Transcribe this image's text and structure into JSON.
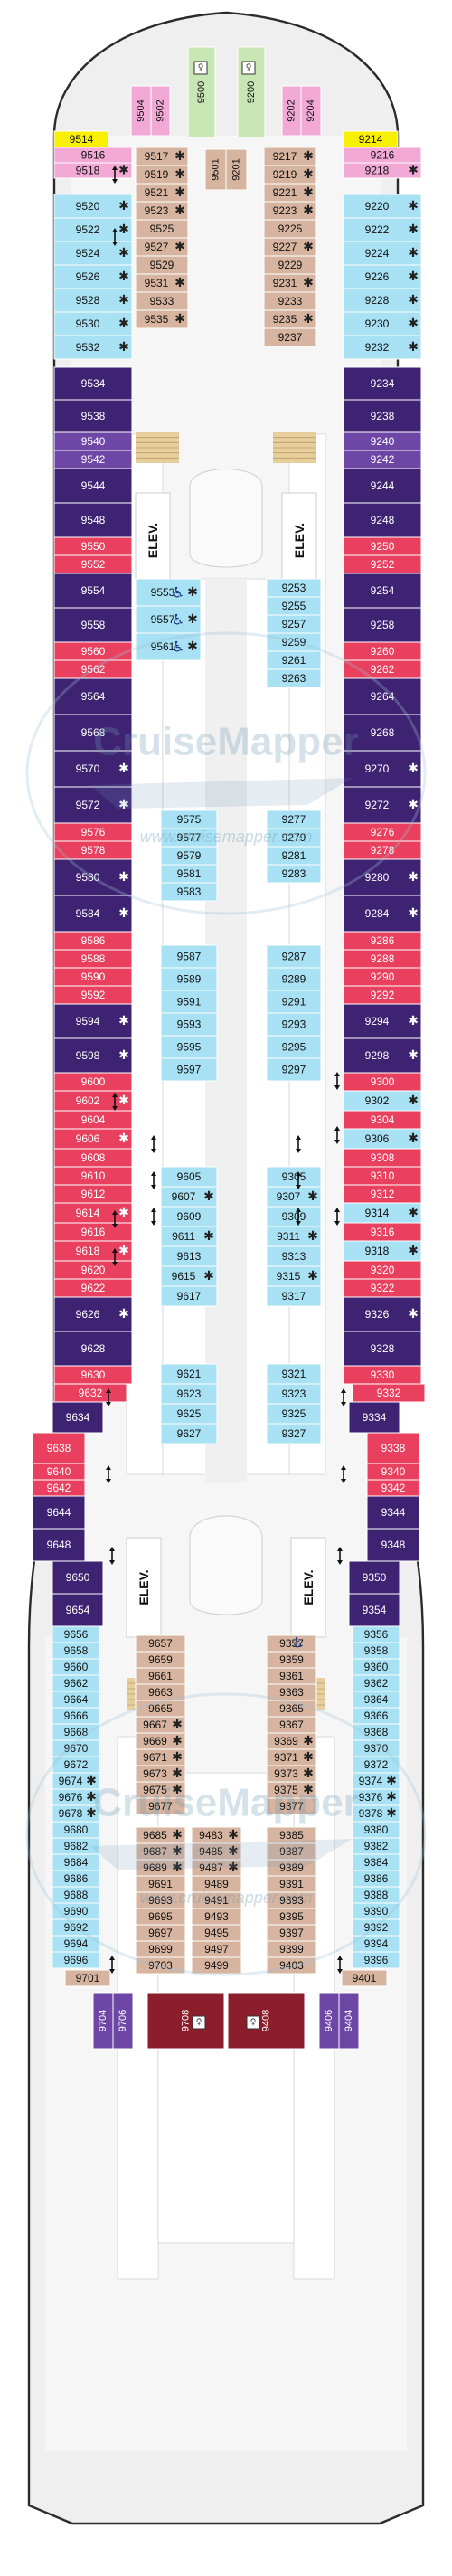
{
  "watermark": {
    "brand": "CruiseMapper",
    "url": "www.cruisemapper.com"
  },
  "colors": {
    "pink": "#f2a9d6",
    "yellow": "#f7f000",
    "green": "#c8e6b4",
    "purple_dark": "#3f2373",
    "purple_mid": "#6e47a6",
    "red": "#e8405e",
    "light_blue": "#a7e1f3",
    "tan": "#d7b49f",
    "maroon": "#8c1e2c",
    "stair": "#e7cf9d"
  },
  "labels": {
    "elevator": "ELEV."
  },
  "icons": [
    "wheelchair-icon",
    "connecting-door-arrow-icon",
    "balcony-star-icon",
    "restroom-icon"
  ],
  "cabins": [
    [
      "9504",
      "pink",
      "v"
    ],
    [
      "9502",
      "pink",
      "v"
    ],
    [
      "9500",
      "green",
      "v"
    ],
    [
      "9200",
      "green",
      "v"
    ],
    [
      "9202",
      "pink",
      "v"
    ],
    [
      "9204",
      "pink",
      "v"
    ],
    [
      "9514",
      "yellow"
    ],
    [
      "9214",
      "yellow"
    ],
    [
      "9516",
      "pink"
    ],
    [
      "9518",
      "pink",
      "*"
    ],
    [
      "9216",
      "pink"
    ],
    [
      "9218",
      "pink",
      "*"
    ],
    [
      "9520",
      "light_blue",
      "*"
    ],
    [
      "9522",
      "light_blue",
      "*"
    ],
    [
      "9524",
      "light_blue",
      "*"
    ],
    [
      "9526",
      "light_blue",
      "*"
    ],
    [
      "9528",
      "light_blue",
      "*"
    ],
    [
      "9530",
      "light_blue",
      "*"
    ],
    [
      "9532",
      "light_blue",
      "*"
    ],
    [
      "9220",
      "light_blue",
      "*"
    ],
    [
      "9222",
      "light_blue",
      "*"
    ],
    [
      "9224",
      "light_blue",
      "*"
    ],
    [
      "9226",
      "light_blue",
      "*"
    ],
    [
      "9228",
      "light_blue",
      "*"
    ],
    [
      "9230",
      "light_blue",
      "*"
    ],
    [
      "9232",
      "light_blue",
      "*"
    ],
    [
      "9517",
      "tan",
      "*"
    ],
    [
      "9519",
      "tan",
      "*"
    ],
    [
      "9521",
      "tan",
      "*"
    ],
    [
      "9523",
      "tan",
      "*"
    ],
    [
      "9525",
      "tan"
    ],
    [
      "9527",
      "tan",
      "*"
    ],
    [
      "9529",
      "tan"
    ],
    [
      "9531",
      "tan",
      "*"
    ],
    [
      "9533",
      "tan"
    ],
    [
      "9535",
      "tan",
      "*"
    ],
    [
      "9501",
      "tan",
      "v"
    ],
    [
      "9201",
      "tan",
      "v"
    ],
    [
      "9217",
      "tan",
      "*"
    ],
    [
      "9219",
      "tan",
      "*"
    ],
    [
      "9221",
      "tan",
      "*"
    ],
    [
      "9223",
      "tan",
      "*"
    ],
    [
      "9225",
      "tan"
    ],
    [
      "9227",
      "tan",
      "*"
    ],
    [
      "9229",
      "tan"
    ],
    [
      "9231",
      "tan",
      "*"
    ],
    [
      "9233",
      "tan"
    ],
    [
      "9235",
      "tan",
      "*"
    ],
    [
      "9237",
      "tan"
    ],
    [
      "9534",
      "purple_dark"
    ],
    [
      "9538",
      "purple_dark"
    ],
    [
      "9540",
      "purple_mid"
    ],
    [
      "9542",
      "purple_mid"
    ],
    [
      "9544",
      "purple_dark"
    ],
    [
      "9548",
      "purple_dark"
    ],
    [
      "9234",
      "purple_dark"
    ],
    [
      "9238",
      "purple_dark"
    ],
    [
      "9240",
      "purple_mid"
    ],
    [
      "9242",
      "purple_mid"
    ],
    [
      "9244",
      "purple_dark"
    ],
    [
      "9248",
      "purple_dark"
    ],
    [
      "9550",
      "red"
    ],
    [
      "9552",
      "red"
    ],
    [
      "9554",
      "purple_dark"
    ],
    [
      "9558",
      "purple_dark"
    ],
    [
      "9560",
      "red"
    ],
    [
      "9562",
      "red"
    ],
    [
      "9564",
      "purple_dark"
    ],
    [
      "9568",
      "purple_dark"
    ],
    [
      "9570",
      "purple_dark",
      "*"
    ],
    [
      "9572",
      "purple_dark",
      "*"
    ],
    [
      "9576",
      "red"
    ],
    [
      "9578",
      "red"
    ],
    [
      "9580",
      "purple_dark",
      "*"
    ],
    [
      "9584",
      "purple_dark",
      "*"
    ],
    [
      "9250",
      "red"
    ],
    [
      "9252",
      "red"
    ],
    [
      "9254",
      "purple_dark"
    ],
    [
      "9258",
      "purple_dark"
    ],
    [
      "9260",
      "red"
    ],
    [
      "9262",
      "red"
    ],
    [
      "9264",
      "purple_dark"
    ],
    [
      "9268",
      "purple_dark"
    ],
    [
      "9270",
      "purple_dark",
      "*"
    ],
    [
      "9272",
      "purple_dark",
      "*"
    ],
    [
      "9276",
      "red"
    ],
    [
      "9278",
      "red"
    ],
    [
      "9280",
      "purple_dark",
      "*"
    ],
    [
      "9284",
      "purple_dark",
      "*"
    ],
    [
      "9553",
      "light_blue",
      "*"
    ],
    [
      "9557",
      "light_blue",
      "*"
    ],
    [
      "9561",
      "light_blue",
      "*"
    ],
    [
      "9253",
      "light_blue"
    ],
    [
      "9255",
      "light_blue"
    ],
    [
      "9257",
      "light_blue"
    ],
    [
      "9259",
      "light_blue"
    ],
    [
      "9261",
      "light_blue"
    ],
    [
      "9263",
      "light_blue"
    ],
    [
      "9575",
      "light_blue"
    ],
    [
      "9577",
      "light_blue"
    ],
    [
      "9579",
      "light_blue"
    ],
    [
      "9581",
      "light_blue"
    ],
    [
      "9583",
      "light_blue"
    ],
    [
      "9277",
      "light_blue"
    ],
    [
      "9279",
      "light_blue"
    ],
    [
      "9281",
      "light_blue"
    ],
    [
      "9283",
      "light_blue"
    ],
    [
      "9586",
      "red"
    ],
    [
      "9588",
      "red"
    ],
    [
      "9590",
      "red"
    ],
    [
      "9592",
      "red"
    ],
    [
      "9594",
      "purple_dark",
      "*"
    ],
    [
      "9598",
      "purple_dark",
      "*"
    ],
    [
      "9286",
      "red"
    ],
    [
      "9288",
      "red"
    ],
    [
      "9290",
      "red"
    ],
    [
      "9292",
      "red"
    ],
    [
      "9294",
      "purple_dark",
      "*"
    ],
    [
      "9298",
      "purple_dark",
      "*"
    ],
    [
      "9587",
      "light_blue"
    ],
    [
      "9589",
      "light_blue"
    ],
    [
      "9591",
      "light_blue"
    ],
    [
      "9593",
      "light_blue"
    ],
    [
      "9595",
      "light_blue"
    ],
    [
      "9597",
      "light_blue"
    ],
    [
      "9287",
      "light_blue"
    ],
    [
      "9289",
      "light_blue"
    ],
    [
      "9291",
      "light_blue"
    ],
    [
      "9293",
      "light_blue"
    ],
    [
      "9295",
      "light_blue"
    ],
    [
      "9297",
      "light_blue"
    ],
    [
      "9600",
      "red"
    ],
    [
      "9602",
      "red",
      "*"
    ],
    [
      "9604",
      "red"
    ],
    [
      "9606",
      "red",
      "*"
    ],
    [
      "9608",
      "red"
    ],
    [
      "9610",
      "red"
    ],
    [
      "9612",
      "red"
    ],
    [
      "9614",
      "red",
      "*"
    ],
    [
      "9616",
      "red"
    ],
    [
      "9618",
      "red",
      "*"
    ],
    [
      "9620",
      "red"
    ],
    [
      "9622",
      "red"
    ],
    [
      "9626",
      "purple_dark",
      "*"
    ],
    [
      "9628",
      "purple_dark"
    ],
    [
      "9300",
      "red"
    ],
    [
      "9302",
      "light_blue",
      "*"
    ],
    [
      "9304",
      "red"
    ],
    [
      "9306",
      "light_blue",
      "*"
    ],
    [
      "9308",
      "red"
    ],
    [
      "9310",
      "red"
    ],
    [
      "9312",
      "red"
    ],
    [
      "9314",
      "light_blue",
      "*"
    ],
    [
      "9316",
      "red"
    ],
    [
      "9318",
      "light_blue",
      "*"
    ],
    [
      "9320",
      "red"
    ],
    [
      "9322",
      "red"
    ],
    [
      "9326",
      "purple_dark",
      "*"
    ],
    [
      "9328",
      "purple_dark"
    ],
    [
      "9605",
      "light_blue"
    ],
    [
      "9607",
      "light_blue",
      "*"
    ],
    [
      "9609",
      "light_blue"
    ],
    [
      "9611",
      "light_blue",
      "*"
    ],
    [
      "9613",
      "light_blue"
    ],
    [
      "9615",
      "light_blue",
      "*"
    ],
    [
      "9617",
      "light_blue"
    ],
    [
      "9621",
      "light_blue"
    ],
    [
      "9623",
      "light_blue"
    ],
    [
      "9625",
      "light_blue"
    ],
    [
      "9627",
      "light_blue"
    ],
    [
      "9305",
      "light_blue"
    ],
    [
      "9307",
      "light_blue",
      "*"
    ],
    [
      "9309",
      "light_blue"
    ],
    [
      "9311",
      "light_blue",
      "*"
    ],
    [
      "9313",
      "light_blue"
    ],
    [
      "9315",
      "light_blue",
      "*"
    ],
    [
      "9317",
      "light_blue"
    ],
    [
      "9321",
      "light_blue"
    ],
    [
      "9323",
      "light_blue"
    ],
    [
      "9325",
      "light_blue"
    ],
    [
      "9327",
      "light_blue"
    ],
    [
      "9630",
      "red"
    ],
    [
      "9632",
      "red"
    ],
    [
      "9634",
      "purple_dark"
    ],
    [
      "9638",
      "red"
    ],
    [
      "9640",
      "red"
    ],
    [
      "9642",
      "red"
    ],
    [
      "9644",
      "purple_dark"
    ],
    [
      "9648",
      "purple_dark"
    ],
    [
      "9650",
      "purple_dark"
    ],
    [
      "9654",
      "purple_dark"
    ],
    [
      "9330",
      "red"
    ],
    [
      "9332",
      "red"
    ],
    [
      "9334",
      "purple_dark"
    ],
    [
      "9338",
      "red"
    ],
    [
      "9340",
      "red"
    ],
    [
      "9342",
      "red"
    ],
    [
      "9344",
      "purple_dark"
    ],
    [
      "9348",
      "purple_dark"
    ],
    [
      "9350",
      "purple_dark"
    ],
    [
      "9354",
      "purple_dark"
    ],
    [
      "9656",
      "light_blue"
    ],
    [
      "9658",
      "light_blue"
    ],
    [
      "9660",
      "light_blue"
    ],
    [
      "9662",
      "light_blue"
    ],
    [
      "9664",
      "light_blue"
    ],
    [
      "9666",
      "light_blue"
    ],
    [
      "9668",
      "light_blue"
    ],
    [
      "9670",
      "light_blue"
    ],
    [
      "9672",
      "light_blue"
    ],
    [
      "9674",
      "light_blue",
      "*"
    ],
    [
      "9676",
      "light_blue",
      "*"
    ],
    [
      "9678",
      "light_blue",
      "*"
    ],
    [
      "9680",
      "light_blue"
    ],
    [
      "9682",
      "light_blue"
    ],
    [
      "9684",
      "light_blue"
    ],
    [
      "9686",
      "light_blue"
    ],
    [
      "9688",
      "light_blue"
    ],
    [
      "9690",
      "light_blue"
    ],
    [
      "9692",
      "light_blue"
    ],
    [
      "9694",
      "light_blue"
    ],
    [
      "9696",
      "light_blue"
    ],
    [
      "9356",
      "light_blue"
    ],
    [
      "9358",
      "light_blue"
    ],
    [
      "9360",
      "light_blue"
    ],
    [
      "9362",
      "light_blue"
    ],
    [
      "9364",
      "light_blue"
    ],
    [
      "9366",
      "light_blue"
    ],
    [
      "9368",
      "light_blue"
    ],
    [
      "9370",
      "light_blue"
    ],
    [
      "9372",
      "light_blue"
    ],
    [
      "9374",
      "light_blue",
      "*"
    ],
    [
      "9376",
      "light_blue",
      "*"
    ],
    [
      "9378",
      "light_blue",
      "*"
    ],
    [
      "9380",
      "light_blue"
    ],
    [
      "9382",
      "light_blue"
    ],
    [
      "9384",
      "light_blue"
    ],
    [
      "9386",
      "light_blue"
    ],
    [
      "9388",
      "light_blue"
    ],
    [
      "9390",
      "light_blue"
    ],
    [
      "9392",
      "light_blue"
    ],
    [
      "9394",
      "light_blue"
    ],
    [
      "9396",
      "light_blue"
    ],
    [
      "9657",
      "tan"
    ],
    [
      "9659",
      "tan"
    ],
    [
      "9661",
      "tan"
    ],
    [
      "9663",
      "tan"
    ],
    [
      "9665",
      "tan"
    ],
    [
      "9667",
      "tan",
      "*"
    ],
    [
      "9669",
      "tan",
      "*"
    ],
    [
      "9671",
      "tan",
      "*"
    ],
    [
      "9673",
      "tan",
      "*"
    ],
    [
      "9675",
      "tan",
      "*"
    ],
    [
      "9677",
      "tan"
    ],
    [
      "9357",
      "tan"
    ],
    [
      "9359",
      "tan"
    ],
    [
      "9361",
      "tan"
    ],
    [
      "9363",
      "tan"
    ],
    [
      "9365",
      "tan"
    ],
    [
      "9367",
      "tan"
    ],
    [
      "9369",
      "tan",
      "*"
    ],
    [
      "9371",
      "tan",
      "*"
    ],
    [
      "9373",
      "tan",
      "*"
    ],
    [
      "9375",
      "tan",
      "*"
    ],
    [
      "9377",
      "tan"
    ],
    [
      "9685",
      "tan",
      "*"
    ],
    [
      "9687",
      "tan",
      "*"
    ],
    [
      "9689",
      "tan",
      "*"
    ],
    [
      "9691",
      "tan"
    ],
    [
      "9693",
      "tan"
    ],
    [
      "9695",
      "tan"
    ],
    [
      "9697",
      "tan"
    ],
    [
      "9699",
      "tan"
    ],
    [
      "9703",
      "tan"
    ],
    [
      "9483",
      "tan",
      "*"
    ],
    [
      "9485",
      "tan",
      "*"
    ],
    [
      "9487",
      "tan",
      "*"
    ],
    [
      "9489",
      "tan"
    ],
    [
      "9491",
      "tan"
    ],
    [
      "9493",
      "tan"
    ],
    [
      "9495",
      "tan"
    ],
    [
      "9497",
      "tan"
    ],
    [
      "9499",
      "tan"
    ],
    [
      "9385",
      "tan"
    ],
    [
      "9387",
      "tan"
    ],
    [
      "9389",
      "tan"
    ],
    [
      "9391",
      "tan"
    ],
    [
      "9393",
      "tan"
    ],
    [
      "9395",
      "tan"
    ],
    [
      "9397",
      "tan"
    ],
    [
      "9399",
      "tan"
    ],
    [
      "9403",
      "tan"
    ],
    [
      "9701",
      "tan"
    ],
    [
      "9401",
      "tan"
    ],
    [
      "9704",
      "purple_mid",
      "v"
    ],
    [
      "9706",
      "purple_mid",
      "v"
    ],
    [
      "9708",
      "maroon",
      "v"
    ],
    [
      "9408",
      "maroon",
      "v"
    ],
    [
      "9406",
      "purple_mid",
      "v"
    ],
    [
      "9404",
      "purple_mid",
      "v"
    ]
  ]
}
